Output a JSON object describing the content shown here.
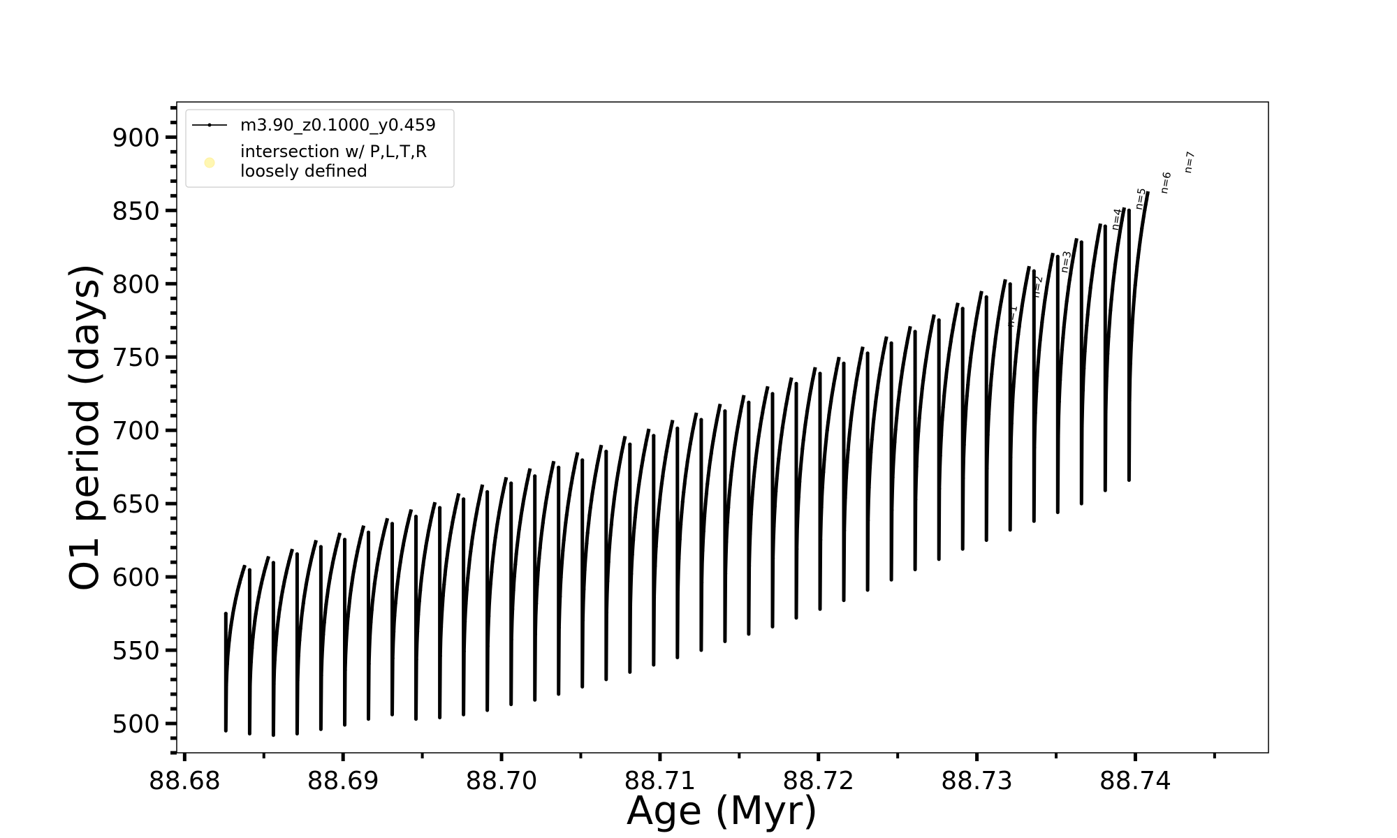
{
  "chart_data": {
    "type": "line",
    "xlabel": "Age (Myr)",
    "ylabel": "O1 period (days)",
    "xlim": [
      88.6795,
      88.7484
    ],
    "ylim": [
      480,
      924
    ],
    "xticks": [
      "88.68",
      "88.69",
      "88.70",
      "88.71",
      "88.72",
      "88.73",
      "88.74"
    ],
    "yticks": [
      "500",
      "550",
      "600",
      "650",
      "700",
      "750",
      "800",
      "850",
      "900"
    ],
    "grid": false,
    "legend": {
      "placement": "upper left",
      "entries": [
        {
          "label": "m3.90_z0.1000_y0.459",
          "marker": "line-dot",
          "color": "#000000"
        },
        {
          "label": "intersection w/ P,L,T,R\nloosely defined",
          "marker": "circle",
          "color": "#fff7b2"
        }
      ]
    },
    "series": [
      {
        "name": "m3.90_z0.1000_y0.459",
        "color": "#000000",
        "pulses": [
          {
            "t0": 88.6826,
            "t1": 88.6838,
            "min": 495,
            "max": 608
          },
          {
            "t0": 88.6841,
            "t1": 88.6853,
            "min": 493,
            "max": 614
          },
          {
            "t0": 88.6856,
            "t1": 88.6868,
            "min": 492,
            "max": 619
          },
          {
            "t0": 88.6871,
            "t1": 88.6883,
            "min": 493,
            "max": 625
          },
          {
            "t0": 88.6886,
            "t1": 88.6898,
            "min": 496,
            "max": 630
          },
          {
            "t0": 88.6901,
            "t1": 88.6913,
            "min": 499,
            "max": 635
          },
          {
            "t0": 88.6916,
            "t1": 88.6928,
            "min": 503,
            "max": 640
          },
          {
            "t0": 88.6931,
            "t1": 88.6943,
            "min": 506,
            "max": 646
          },
          {
            "t0": 88.6946,
            "t1": 88.6958,
            "min": 503,
            "max": 651
          },
          {
            "t0": 88.6961,
            "t1": 88.6973,
            "min": 504,
            "max": 657
          },
          {
            "t0": 88.6976,
            "t1": 88.6988,
            "min": 506,
            "max": 663
          },
          {
            "t0": 88.6991,
            "t1": 88.7003,
            "min": 509,
            "max": 668
          },
          {
            "t0": 88.7006,
            "t1": 88.7018,
            "min": 513,
            "max": 674
          },
          {
            "t0": 88.7021,
            "t1": 88.7033,
            "min": 516,
            "max": 679
          },
          {
            "t0": 88.7036,
            "t1": 88.7048,
            "min": 520,
            "max": 685
          },
          {
            "t0": 88.7051,
            "t1": 88.7063,
            "min": 525,
            "max": 690
          },
          {
            "t0": 88.7066,
            "t1": 88.7078,
            "min": 530,
            "max": 696
          },
          {
            "t0": 88.7081,
            "t1": 88.7093,
            "min": 535,
            "max": 701
          },
          {
            "t0": 88.7096,
            "t1": 88.7108,
            "min": 540,
            "max": 707
          },
          {
            "t0": 88.7111,
            "t1": 88.7123,
            "min": 545,
            "max": 712
          },
          {
            "t0": 88.7126,
            "t1": 88.7138,
            "min": 550,
            "max": 718
          },
          {
            "t0": 88.7141,
            "t1": 88.7153,
            "min": 556,
            "max": 724
          },
          {
            "t0": 88.7156,
            "t1": 88.7168,
            "min": 561,
            "max": 730
          },
          {
            "t0": 88.7171,
            "t1": 88.7183,
            "min": 566,
            "max": 736
          },
          {
            "t0": 88.7186,
            "t1": 88.7198,
            "min": 572,
            "max": 743
          },
          {
            "t0": 88.7201,
            "t1": 88.7213,
            "min": 578,
            "max": 750
          },
          {
            "t0": 88.7216,
            "t1": 88.7228,
            "min": 584,
            "max": 757
          },
          {
            "t0": 88.7231,
            "t1": 88.7243,
            "min": 591,
            "max": 764
          },
          {
            "t0": 88.7246,
            "t1": 88.7258,
            "min": 598,
            "max": 771
          },
          {
            "t0": 88.7261,
            "t1": 88.7273,
            "min": 605,
            "max": 779
          },
          {
            "t0": 88.7276,
            "t1": 88.7288,
            "min": 612,
            "max": 787
          },
          {
            "t0": 88.7291,
            "t1": 88.7303,
            "min": 619,
            "max": 795
          },
          {
            "t0": 88.7306,
            "t1": 88.7318,
            "min": 625,
            "max": 803
          },
          {
            "t0": 88.7321,
            "t1": 88.7333,
            "min": 632,
            "max": 812
          },
          {
            "t0": 88.7336,
            "t1": 88.7348,
            "min": 638,
            "max": 821
          },
          {
            "t0": 88.7351,
            "t1": 88.7363,
            "min": 644,
            "max": 831
          },
          {
            "t0": 88.7366,
            "t1": 88.7378,
            "min": 650,
            "max": 841
          },
          {
            "t0": 88.7381,
            "t1": 88.7393,
            "min": 659,
            "max": 852
          },
          {
            "t0": 88.7396,
            "t1": 88.7408,
            "min": 666,
            "max": 863
          }
        ]
      }
    ],
    "annotations": [
      {
        "text": "n=1",
        "x": 88.7323,
        "y": 770
      },
      {
        "text": "n=2",
        "x": 88.7339,
        "y": 790
      },
      {
        "text": "n=3",
        "x": 88.7357,
        "y": 807
      },
      {
        "text": "n=4",
        "x": 88.7389,
        "y": 836
      },
      {
        "text": "n=5",
        "x": 88.7404,
        "y": 850
      },
      {
        "text": "n=6",
        "x": 88.742,
        "y": 861
      },
      {
        "text": "n=7",
        "x": 88.7435,
        "y": 875
      }
    ]
  }
}
